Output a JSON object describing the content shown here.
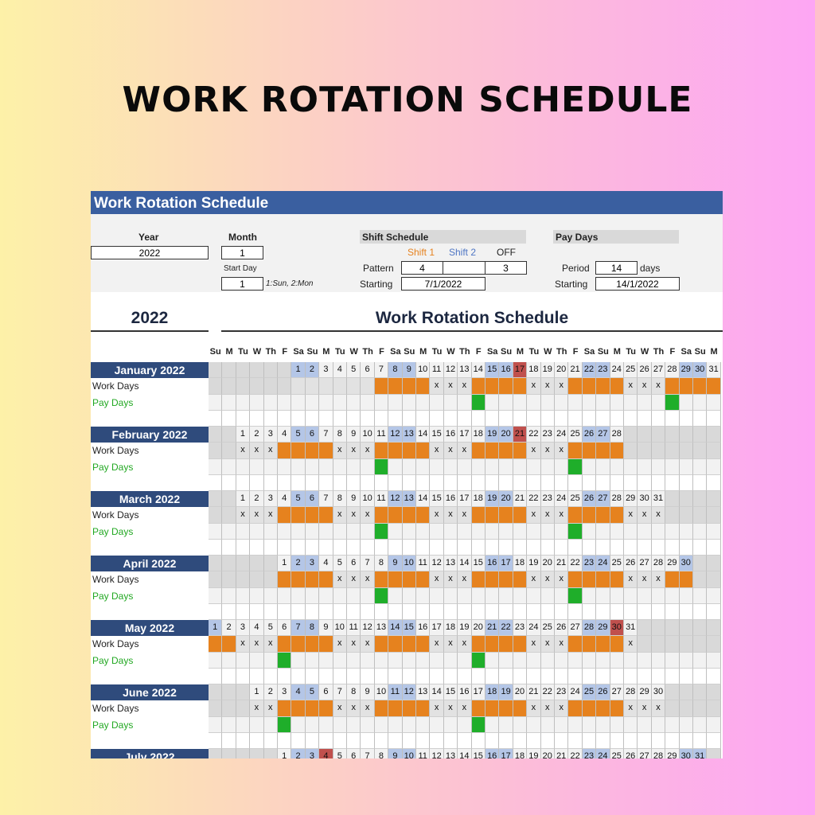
{
  "banner_title": "WORK ROTATION SCHEDULE",
  "sheet_title": "Work Rotation Schedule",
  "settings": {
    "year_label": "Year",
    "year_value": "2022",
    "month_label": "Month",
    "month_value": "1",
    "start_day_label": "Start Day",
    "start_day_value": "1",
    "start_day_hint": "1:Sun, 2:Mon",
    "shift_schedule_label": "Shift Schedule",
    "shift1_label": "Shift 1",
    "shift2_label": "Shift 2",
    "off_label": "OFF",
    "pattern_label": "Pattern",
    "pattern_shift1": "4",
    "pattern_shift2": "",
    "pattern_off": "3",
    "starting_label": "Starting",
    "shift_starting": "7/1/2022",
    "pay_days_label": "Pay Days",
    "period_label": "Period",
    "period_value": "14",
    "period_unit": "days",
    "pay_starting_label": "Starting",
    "pay_starting": "14/1/2022"
  },
  "calendar": {
    "year_heading": "2022",
    "title": "Work Rotation Schedule",
    "weekday_headers": [
      "Su",
      "M",
      "Tu",
      "W",
      "Th",
      "F",
      "Sa",
      "Su",
      "M",
      "Tu",
      "W",
      "Th",
      "F",
      "Sa",
      "Su",
      "M",
      "Tu",
      "W",
      "Th",
      "F",
      "Sa",
      "Su",
      "M",
      "Tu",
      "W",
      "Th",
      "F",
      "Sa",
      "Su",
      "M",
      "Tu",
      "W",
      "Th",
      "F",
      "Sa",
      "Su",
      "M"
    ],
    "work_days_label": "Work Days",
    "pay_days_label": "Pay Days",
    "months": [
      {
        "label": "January 2022",
        "offset": 6,
        "days": 31,
        "holiday": [
          17
        ],
        "work": [
          7,
          8,
          9,
          10,
          14,
          15,
          16,
          17,
          21,
          22,
          23,
          24,
          28,
          29,
          30,
          31
        ],
        "x": [
          11,
          12,
          13,
          18,
          19,
          20,
          25,
          26,
          27
        ],
        "pay": [
          14,
          28
        ]
      },
      {
        "label": "February 2022",
        "offset": 2,
        "days": 28,
        "holiday": [
          21
        ],
        "work": [
          4,
          5,
          6,
          7,
          11,
          12,
          13,
          14,
          18,
          19,
          20,
          21,
          25,
          26,
          27,
          28
        ],
        "x": [
          1,
          2,
          3,
          8,
          9,
          10,
          15,
          16,
          17,
          22,
          23,
          24
        ],
        "pay": [
          11,
          25
        ]
      },
      {
        "label": "March 2022",
        "offset": 2,
        "days": 31,
        "holiday": [],
        "work": [
          4,
          5,
          6,
          7,
          11,
          12,
          13,
          14,
          18,
          19,
          20,
          21,
          25,
          26,
          27,
          28
        ],
        "x": [
          1,
          2,
          3,
          8,
          9,
          10,
          15,
          16,
          17,
          22,
          23,
          24,
          29,
          30,
          31
        ],
        "pay": [
          11,
          25
        ]
      },
      {
        "label": "April 2022",
        "offset": 5,
        "days": 30,
        "holiday": [],
        "work": [
          1,
          2,
          3,
          4,
          8,
          9,
          10,
          11,
          15,
          16,
          17,
          18,
          22,
          23,
          24,
          25,
          29,
          30
        ],
        "x": [
          5,
          6,
          7,
          12,
          13,
          14,
          19,
          20,
          21,
          26,
          27,
          28
        ],
        "pay": [
          8,
          22
        ]
      },
      {
        "label": "May 2022",
        "offset": 0,
        "days": 31,
        "holiday": [
          30
        ],
        "work": [
          1,
          2,
          6,
          7,
          8,
          9,
          13,
          14,
          15,
          16,
          20,
          21,
          22,
          23,
          27,
          28,
          29,
          30
        ],
        "x": [
          3,
          4,
          5,
          10,
          11,
          12,
          17,
          18,
          19,
          24,
          25,
          26,
          31
        ],
        "pay": [
          6,
          20
        ]
      },
      {
        "label": "June 2022",
        "offset": 3,
        "days": 30,
        "holiday": [],
        "work": [
          3,
          4,
          5,
          6,
          10,
          11,
          12,
          13,
          17,
          18,
          19,
          20,
          24,
          25,
          26,
          27
        ],
        "x": [
          1,
          2,
          7,
          8,
          9,
          14,
          15,
          16,
          21,
          22,
          23,
          28,
          29,
          30
        ],
        "pay": [
          3,
          17
        ]
      },
      {
        "label": "July 2022",
        "offset": 5,
        "days": 31,
        "holiday": [
          4
        ],
        "work": [],
        "x": [],
        "pay": []
      }
    ]
  },
  "colors": {
    "header_blue": "#3a5fa0",
    "month_label_navy": "#2f4b7c",
    "weekend_blue": "#b4c6e7",
    "holiday_red": "#c0504d",
    "work_orange": "#e6821e",
    "pay_green": "#1fae2a",
    "shift1_orange": "#e6821e",
    "shift2_blue": "#4f76c4"
  }
}
